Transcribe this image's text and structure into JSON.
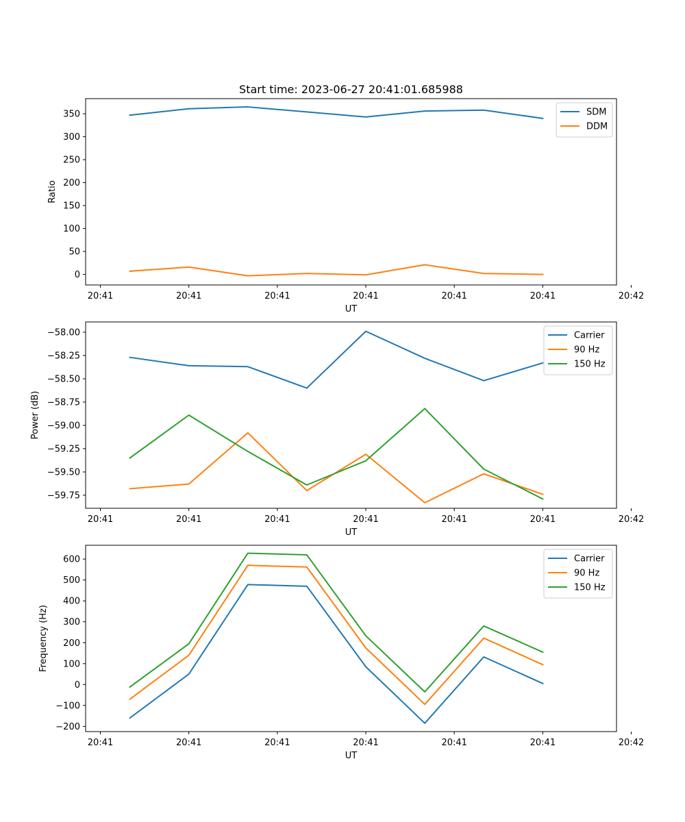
{
  "figure": {
    "title": "Start time: 2023-06-27 20:41:01.685988"
  },
  "chart_data": [
    {
      "type": "line",
      "ylabel": "Ratio",
      "xlabel": "UT",
      "x": [
        1,
        2,
        3,
        4,
        5,
        6,
        7,
        8
      ],
      "xlim": [
        0.25,
        9.25
      ],
      "ylim": [
        -23,
        383
      ],
      "yticks": [
        0,
        50,
        100,
        150,
        200,
        250,
        300,
        350
      ],
      "xtick_positions": [
        0.5,
        2,
        3.5,
        5,
        6.5,
        8,
        9.5
      ],
      "xtick_labels": [
        "20:41",
        "20:41",
        "20:41",
        "20:41",
        "20:41",
        "20:41",
        "20:42"
      ],
      "legend": "top-right",
      "series": [
        {
          "name": "SDM",
          "color": "#1f77b4",
          "values": [
            347,
            361,
            365,
            354,
            343,
            356,
            358,
            340
          ]
        },
        {
          "name": "DDM",
          "color": "#ff7f0e",
          "values": [
            7,
            16,
            -3,
            2,
            -1,
            21,
            2,
            0
          ]
        }
      ]
    },
    {
      "type": "line",
      "ylabel": "Power (dB)",
      "xlabel": "UT",
      "x": [
        1,
        2,
        3,
        4,
        5,
        6,
        7,
        8
      ],
      "xlim": [
        0.25,
        9.25
      ],
      "ylim": [
        -59.89,
        -57.89
      ],
      "yticks": [
        -59.75,
        -59.5,
        -59.25,
        -59.0,
        -58.75,
        -58.5,
        -58.25,
        -58.0
      ],
      "ytick_labels": [
        "−59.75",
        "−59.50",
        "−59.25",
        "−59.00",
        "−58.75",
        "−58.50",
        "−58.25",
        "−58.00"
      ],
      "xtick_positions": [
        0.5,
        2,
        3.5,
        5,
        6.5,
        8,
        9.5
      ],
      "xtick_labels": [
        "20:41",
        "20:41",
        "20:41",
        "20:41",
        "20:41",
        "20:41",
        "20:42"
      ],
      "legend": "top-right",
      "series": [
        {
          "name": "Carrier",
          "color": "#1f77b4",
          "values": [
            -58.27,
            -58.36,
            -58.37,
            -58.6,
            -57.99,
            -58.28,
            -58.52,
            -58.33
          ]
        },
        {
          "name": "90 Hz",
          "color": "#ff7f0e",
          "values": [
            -59.68,
            -59.63,
            -59.08,
            -59.7,
            -59.31,
            -59.83,
            -59.52,
            -59.74
          ]
        },
        {
          "name": "150 Hz",
          "color": "#2ca02c",
          "values": [
            -59.35,
            -58.89,
            -59.28,
            -59.64,
            -59.38,
            -58.82,
            -59.47,
            -59.79
          ]
        }
      ]
    },
    {
      "type": "line",
      "ylabel": "Frequency (Hz)",
      "xlabel": "UT",
      "x": [
        1,
        2,
        3,
        4,
        5,
        6,
        7,
        8
      ],
      "xlim": [
        0.25,
        9.25
      ],
      "ylim": [
        -225,
        666
      ],
      "yticks": [
        -200,
        -100,
        0,
        100,
        200,
        300,
        400,
        500,
        600
      ],
      "ytick_labels": [
        "−200",
        "−100",
        "0",
        "100",
        "200",
        "300",
        "400",
        "500",
        "600"
      ],
      "xtick_positions": [
        0.5,
        2,
        3.5,
        5,
        6.5,
        8,
        9.5
      ],
      "xtick_labels": [
        "20:41",
        "20:41",
        "20:41",
        "20:41",
        "20:41",
        "20:41",
        "20:42"
      ],
      "legend": "top-right",
      "series": [
        {
          "name": "Carrier",
          "color": "#1f77b4",
          "values": [
            -160,
            50,
            478,
            470,
            85,
            -185,
            132,
            5
          ]
        },
        {
          "name": "90 Hz",
          "color": "#ff7f0e",
          "values": [
            -70,
            140,
            570,
            562,
            175,
            -95,
            222,
            95
          ]
        },
        {
          "name": "150 Hz",
          "color": "#2ca02c",
          "values": [
            -12,
            195,
            628,
            620,
            233,
            -35,
            280,
            155
          ]
        }
      ]
    }
  ]
}
